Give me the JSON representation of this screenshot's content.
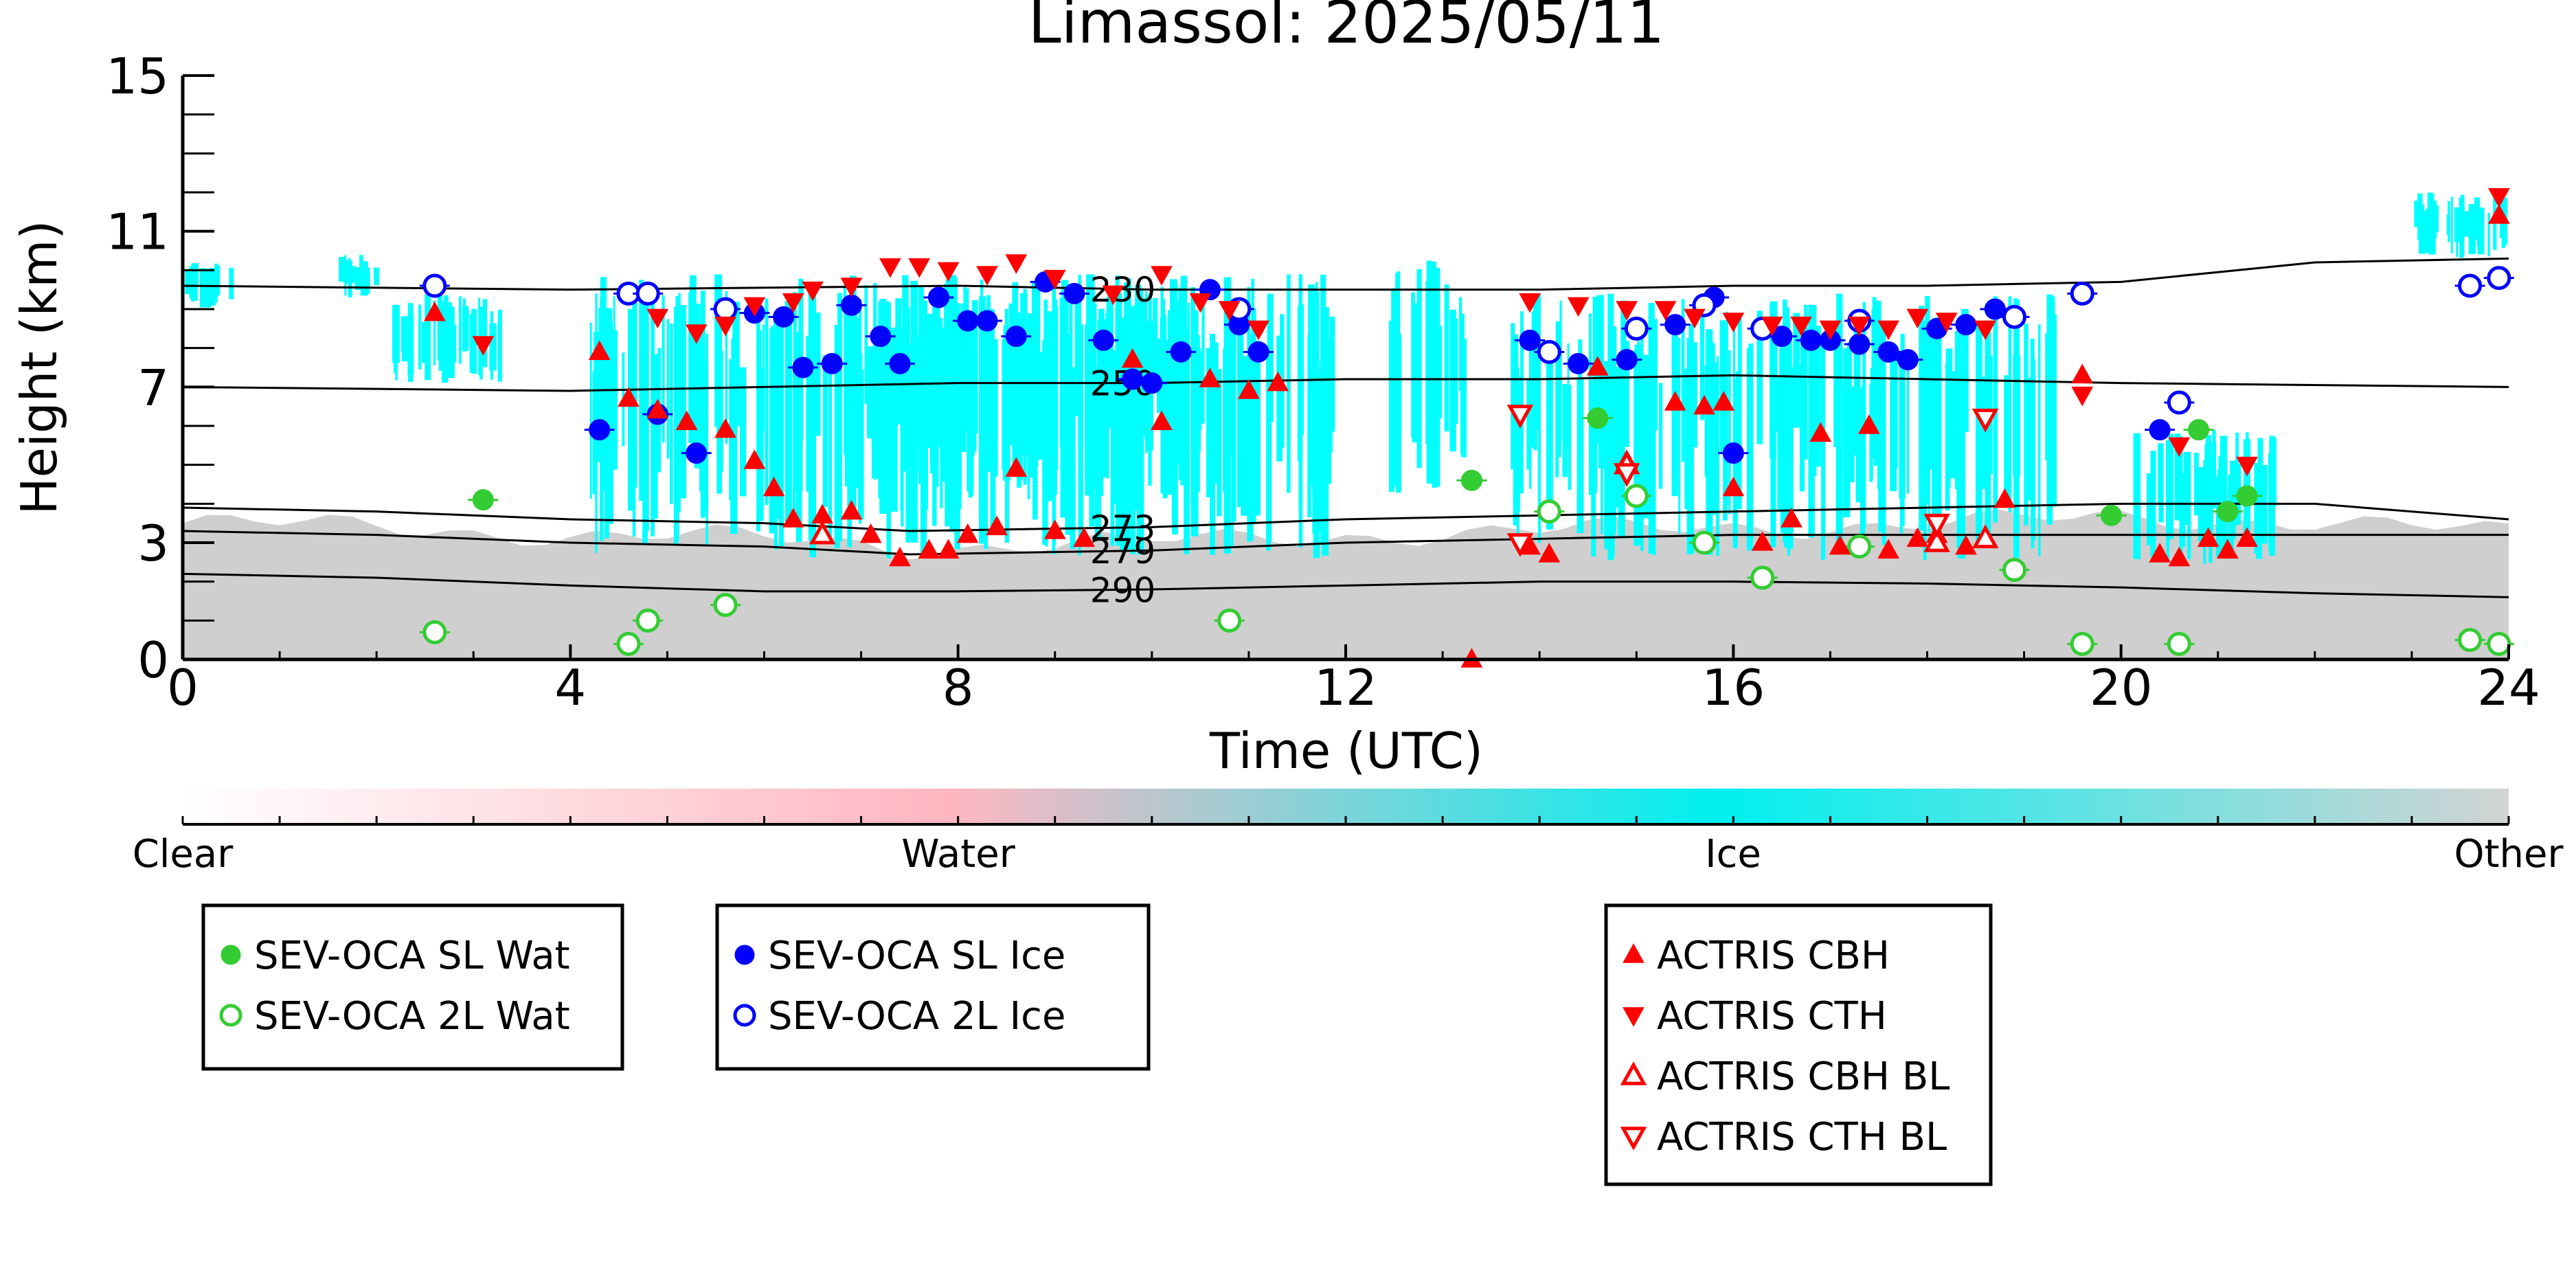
{
  "chart_data": {
    "type": "scatter",
    "title": "Limassol: 2025/05/11",
    "xlabel": "Time (UTC)",
    "ylabel": "Height (km)",
    "xlim": [
      0,
      24
    ],
    "ylim": [
      0,
      15
    ],
    "x_ticks": [
      0,
      4,
      8,
      12,
      16,
      20,
      24
    ],
    "y_ticks": [
      0,
      3,
      7,
      11,
      15
    ],
    "grid": false,
    "isotherms": [
      {
        "label": "230",
        "label_x": 9.7,
        "points": [
          [
            0,
            9.6
          ],
          [
            4,
            9.5
          ],
          [
            8,
            9.6
          ],
          [
            10,
            9.5
          ],
          [
            14,
            9.5
          ],
          [
            16,
            9.6
          ],
          [
            18,
            9.6
          ],
          [
            20,
            9.7
          ],
          [
            22,
            10.2
          ],
          [
            24,
            10.3
          ]
        ]
      },
      {
        "label": "250",
        "label_x": 9.7,
        "points": [
          [
            0,
            7.0
          ],
          [
            4,
            6.9
          ],
          [
            8,
            7.1
          ],
          [
            10,
            7.1
          ],
          [
            12,
            7.2
          ],
          [
            14,
            7.2
          ],
          [
            16,
            7.3
          ],
          [
            18,
            7.2
          ],
          [
            20,
            7.1
          ],
          [
            24,
            7.0
          ]
        ]
      },
      {
        "label": "273",
        "label_x": 9.7,
        "points": [
          [
            0,
            3.9
          ],
          [
            2,
            3.8
          ],
          [
            4,
            3.6
          ],
          [
            6,
            3.5
          ],
          [
            7.5,
            3.3
          ],
          [
            10,
            3.4
          ],
          [
            12,
            3.6
          ],
          [
            14,
            3.7
          ],
          [
            16,
            3.8
          ],
          [
            18,
            3.9
          ],
          [
            20,
            4.0
          ],
          [
            22,
            4.0
          ],
          [
            24,
            3.6
          ]
        ]
      },
      {
        "label": "279",
        "label_x": 9.7,
        "points": [
          [
            0,
            3.3
          ],
          [
            2,
            3.2
          ],
          [
            4,
            3.0
          ],
          [
            6,
            2.9
          ],
          [
            7.5,
            2.7
          ],
          [
            10,
            2.8
          ],
          [
            12,
            3.0
          ],
          [
            14,
            3.1
          ],
          [
            16,
            3.2
          ],
          [
            18,
            3.2
          ],
          [
            20,
            3.2
          ],
          [
            24,
            3.2
          ]
        ]
      },
      {
        "label": "290",
        "label_x": 9.7,
        "points": [
          [
            0,
            2.2
          ],
          [
            2,
            2.1
          ],
          [
            4,
            1.9
          ],
          [
            6,
            1.75
          ],
          [
            8,
            1.75
          ],
          [
            10,
            1.8
          ],
          [
            12,
            1.9
          ],
          [
            14,
            2.0
          ],
          [
            16,
            2.0
          ],
          [
            18,
            1.95
          ],
          [
            20,
            1.85
          ],
          [
            22,
            1.7
          ],
          [
            24,
            1.6
          ]
        ]
      }
    ],
    "classification_colorbar": {
      "labels": [
        "Clear",
        "Water",
        "Ice",
        "Other"
      ],
      "colors": [
        "#ffffff",
        "#ffb6c1",
        "#00ffff",
        "#d3d3d3"
      ]
    },
    "colors": {
      "sev_water": "#33cc33",
      "sev_ice": "#0000ff",
      "actris": "#ff0000",
      "ice_fill": "#00ffff",
      "other_fill": "#cccccc"
    },
    "series": [
      {
        "name": "SEV-OCA SL Wat",
        "marker": "circle-filled",
        "color": "#33cc33",
        "points": [
          [
            3.1,
            4.1
          ],
          [
            13.3,
            4.6
          ],
          [
            14.6,
            6.2
          ],
          [
            19.9,
            3.7
          ],
          [
            20.8,
            5.9
          ],
          [
            21.1,
            3.8
          ],
          [
            21.3,
            4.2
          ]
        ]
      },
      {
        "name": "SEV-OCA 2L Wat",
        "marker": "circle-open",
        "color": "#33cc33",
        "points": [
          [
            2.6,
            0.7
          ],
          [
            4.6,
            0.4
          ],
          [
            4.8,
            1.0
          ],
          [
            5.6,
            1.4
          ],
          [
            10.8,
            1.0
          ],
          [
            14.1,
            3.8
          ],
          [
            15.0,
            4.2
          ],
          [
            15.7,
            3.0
          ],
          [
            16.3,
            2.1
          ],
          [
            17.3,
            2.9
          ],
          [
            18.9,
            2.3
          ],
          [
            19.6,
            0.4
          ],
          [
            20.6,
            0.4
          ],
          [
            23.6,
            0.5
          ],
          [
            23.9,
            0.4
          ]
        ]
      },
      {
        "name": "SEV-OCA SL Ice",
        "marker": "circle-filled",
        "color": "#0000ff",
        "points": [
          [
            4.3,
            5.9
          ],
          [
            4.9,
            6.3
          ],
          [
            5.3,
            5.3
          ],
          [
            5.9,
            8.9
          ],
          [
            6.2,
            8.8
          ],
          [
            6.4,
            7.5
          ],
          [
            6.7,
            7.6
          ],
          [
            6.9,
            9.1
          ],
          [
            7.2,
            8.3
          ],
          [
            7.4,
            7.6
          ],
          [
            7.8,
            9.3
          ],
          [
            8.1,
            8.7
          ],
          [
            8.3,
            8.7
          ],
          [
            8.6,
            8.3
          ],
          [
            8.9,
            9.7
          ],
          [
            9.2,
            9.4
          ],
          [
            9.5,
            8.2
          ],
          [
            9.8,
            7.2
          ],
          [
            10.0,
            7.1
          ],
          [
            10.3,
            7.9
          ],
          [
            10.6,
            9.5
          ],
          [
            10.9,
            8.6
          ],
          [
            11.1,
            7.9
          ],
          [
            13.9,
            8.2
          ],
          [
            14.4,
            7.6
          ],
          [
            14.9,
            7.7
          ],
          [
            15.4,
            8.6
          ],
          [
            15.8,
            9.3
          ],
          [
            16.0,
            5.3
          ],
          [
            16.5,
            8.3
          ],
          [
            16.8,
            8.2
          ],
          [
            17.0,
            8.2
          ],
          [
            17.3,
            8.1
          ],
          [
            17.6,
            7.9
          ],
          [
            17.8,
            7.7
          ],
          [
            18.1,
            8.5
          ],
          [
            18.4,
            8.6
          ],
          [
            18.7,
            9.0
          ],
          [
            20.4,
            5.9
          ]
        ]
      },
      {
        "name": "SEV-OCA 2L Ice",
        "marker": "circle-open",
        "color": "#0000ff",
        "points": [
          [
            2.6,
            9.6
          ],
          [
            4.6,
            9.4
          ],
          [
            4.8,
            9.4
          ],
          [
            5.6,
            9.0
          ],
          [
            10.9,
            9.0
          ],
          [
            14.1,
            7.9
          ],
          [
            15.0,
            8.5
          ],
          [
            15.7,
            9.1
          ],
          [
            16.3,
            8.5
          ],
          [
            17.3,
            8.7
          ],
          [
            18.9,
            8.8
          ],
          [
            19.6,
            9.4
          ],
          [
            20.6,
            6.6
          ],
          [
            23.6,
            9.6
          ],
          [
            23.9,
            9.8
          ]
        ]
      },
      {
        "name": "ACTRIS CBH",
        "marker": "triangle-up-filled",
        "color": "#ff0000",
        "points": [
          [
            2.6,
            8.9
          ],
          [
            4.3,
            7.9
          ],
          [
            4.6,
            6.7
          ],
          [
            4.9,
            6.4
          ],
          [
            5.2,
            6.1
          ],
          [
            5.6,
            5.9
          ],
          [
            5.9,
            5.1
          ],
          [
            6.1,
            4.4
          ],
          [
            6.3,
            3.6
          ],
          [
            6.6,
            3.7
          ],
          [
            6.9,
            3.8
          ],
          [
            7.1,
            3.2
          ],
          [
            7.4,
            2.6
          ],
          [
            7.7,
            2.8
          ],
          [
            7.9,
            2.8
          ],
          [
            8.1,
            3.2
          ],
          [
            8.4,
            3.4
          ],
          [
            8.6,
            4.9
          ],
          [
            9.0,
            3.3
          ],
          [
            9.3,
            3.1
          ],
          [
            9.8,
            7.7
          ],
          [
            10.1,
            6.1
          ],
          [
            10.6,
            7.2
          ],
          [
            11.0,
            6.9
          ],
          [
            11.3,
            7.1
          ],
          [
            13.3,
            0.0
          ],
          [
            13.9,
            2.9
          ],
          [
            14.1,
            2.7
          ],
          [
            14.6,
            7.5
          ],
          [
            14.9,
            5.1
          ],
          [
            15.4,
            6.6
          ],
          [
            15.7,
            6.5
          ],
          [
            15.9,
            6.6
          ],
          [
            16.0,
            4.4
          ],
          [
            16.3,
            3.0
          ],
          [
            16.6,
            3.6
          ],
          [
            16.9,
            5.8
          ],
          [
            17.1,
            2.9
          ],
          [
            17.4,
            6.0
          ],
          [
            17.6,
            2.8
          ],
          [
            17.9,
            3.1
          ],
          [
            18.1,
            3.2
          ],
          [
            18.4,
            2.9
          ],
          [
            18.8,
            4.1
          ],
          [
            19.6,
            7.3
          ],
          [
            20.4,
            2.7
          ],
          [
            20.6,
            2.6
          ],
          [
            20.9,
            3.1
          ],
          [
            21.1,
            2.8
          ],
          [
            21.3,
            3.1
          ],
          [
            23.9,
            11.4
          ]
        ]
      },
      {
        "name": "ACTRIS CTH",
        "marker": "triangle-down-filled",
        "color": "#ff0000",
        "points": [
          [
            3.1,
            8.1
          ],
          [
            4.9,
            8.8
          ],
          [
            5.3,
            8.4
          ],
          [
            5.6,
            8.6
          ],
          [
            5.9,
            9.1
          ],
          [
            6.3,
            9.2
          ],
          [
            6.5,
            9.5
          ],
          [
            6.9,
            9.6
          ],
          [
            7.3,
            10.1
          ],
          [
            7.6,
            10.1
          ],
          [
            7.9,
            10.0
          ],
          [
            8.3,
            9.9
          ],
          [
            8.6,
            10.2
          ],
          [
            9.0,
            9.8
          ],
          [
            9.6,
            9.4
          ],
          [
            10.1,
            9.9
          ],
          [
            10.5,
            9.2
          ],
          [
            10.8,
            9.0
          ],
          [
            11.1,
            8.5
          ],
          [
            13.9,
            9.2
          ],
          [
            14.4,
            9.1
          ],
          [
            14.9,
            9.0
          ],
          [
            15.3,
            9.0
          ],
          [
            15.6,
            8.8
          ],
          [
            16.0,
            8.7
          ],
          [
            16.4,
            8.6
          ],
          [
            16.7,
            8.6
          ],
          [
            17.0,
            8.5
          ],
          [
            17.3,
            8.6
          ],
          [
            17.6,
            8.5
          ],
          [
            17.9,
            8.8
          ],
          [
            18.2,
            8.7
          ],
          [
            18.6,
            8.5
          ],
          [
            19.6,
            6.8
          ],
          [
            20.6,
            5.5
          ],
          [
            21.3,
            5.0
          ],
          [
            23.9,
            11.9
          ]
        ]
      },
      {
        "name": "ACTRIS CBH BL",
        "marker": "triangle-up-open",
        "color": "#ff0000",
        "points": [
          [
            6.6,
            3.2
          ],
          [
            14.9,
            5.0
          ],
          [
            18.1,
            3.0
          ],
          [
            18.6,
            3.1
          ]
        ]
      },
      {
        "name": "ACTRIS CTH BL",
        "marker": "triangle-down-open",
        "color": "#ff0000",
        "points": [
          [
            13.8,
            6.3
          ],
          [
            14.9,
            4.8
          ],
          [
            13.8,
            3.0
          ],
          [
            18.1,
            3.5
          ],
          [
            18.6,
            6.2
          ]
        ]
      }
    ],
    "legend_groups": [
      {
        "entries": [
          {
            "label": "SEV-OCA SL Wat",
            "marker": "circle-filled",
            "color": "#33cc33"
          },
          {
            "label": "SEV-OCA 2L Wat",
            "marker": "circle-open",
            "color": "#33cc33"
          }
        ]
      },
      {
        "entries": [
          {
            "label": "SEV-OCA SL Ice",
            "marker": "circle-filled",
            "color": "#0000ff"
          },
          {
            "label": "SEV-OCA 2L Ice",
            "marker": "circle-open",
            "color": "#0000ff"
          }
        ]
      },
      {
        "entries": [
          {
            "label": "ACTRIS CBH",
            "marker": "triangle-up-filled",
            "color": "#ff0000"
          },
          {
            "label": "ACTRIS CTH",
            "marker": "triangle-down-filled",
            "color": "#ff0000"
          },
          {
            "label": "ACTRIS CBH BL",
            "marker": "triangle-up-open",
            "color": "#ff0000"
          },
          {
            "label": "ACTRIS CTH BL",
            "marker": "triangle-down-open",
            "color": "#ff0000"
          }
        ]
      }
    ]
  }
}
